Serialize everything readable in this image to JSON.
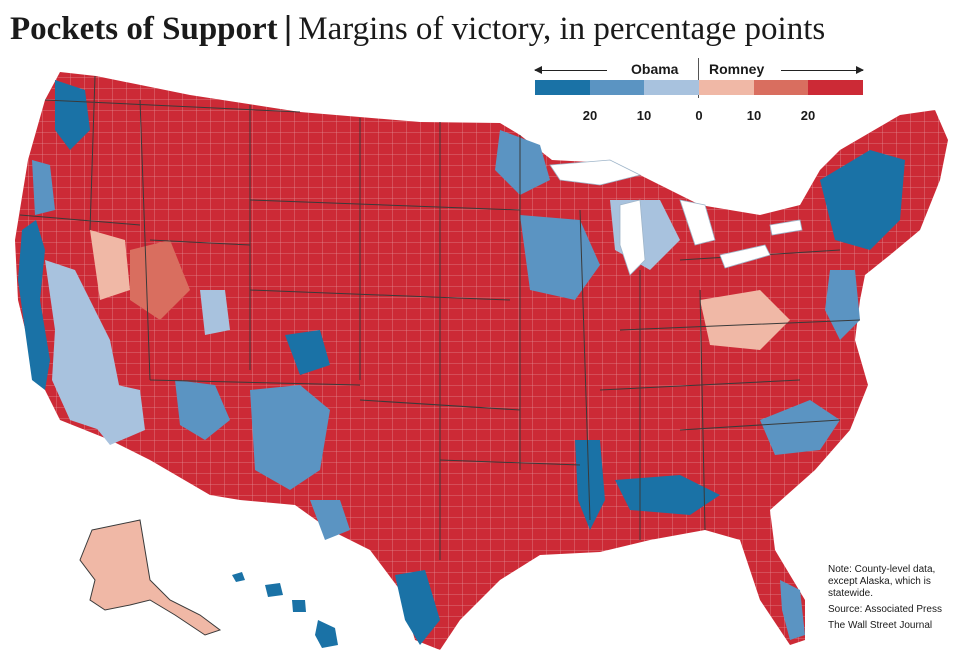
{
  "header": {
    "title_main": "Pockets of Support",
    "separator": "|",
    "title_sub": "Margins of victory, in percentage points"
  },
  "legend": {
    "left_label": "Obama",
    "right_label": "Romney",
    "tick_labels": [
      "20",
      "10",
      "0",
      "10",
      "20"
    ],
    "colors": [
      "#1a72a6",
      "#5b94c2",
      "#a8c2de",
      "#f0b8a6",
      "#d96e5f",
      "#cc2a36"
    ]
  },
  "map": {
    "colors": {
      "obama_strong": "#1a72a6",
      "obama_mid": "#5b94c2",
      "obama_light": "#a8c2de",
      "romney_light": "#f0b8a6",
      "romney_mid": "#d96e5f",
      "romney_strong": "#cc2a36",
      "border": "#ffffff",
      "state_border": "#3a3a3a"
    }
  },
  "notes": {
    "note_line1": "Note: County-level data,",
    "note_line2": "except Alaska, which is",
    "note_line3": "statewide.",
    "source": "Source: Associated Press",
    "publisher": "The Wall Street Journal"
  }
}
